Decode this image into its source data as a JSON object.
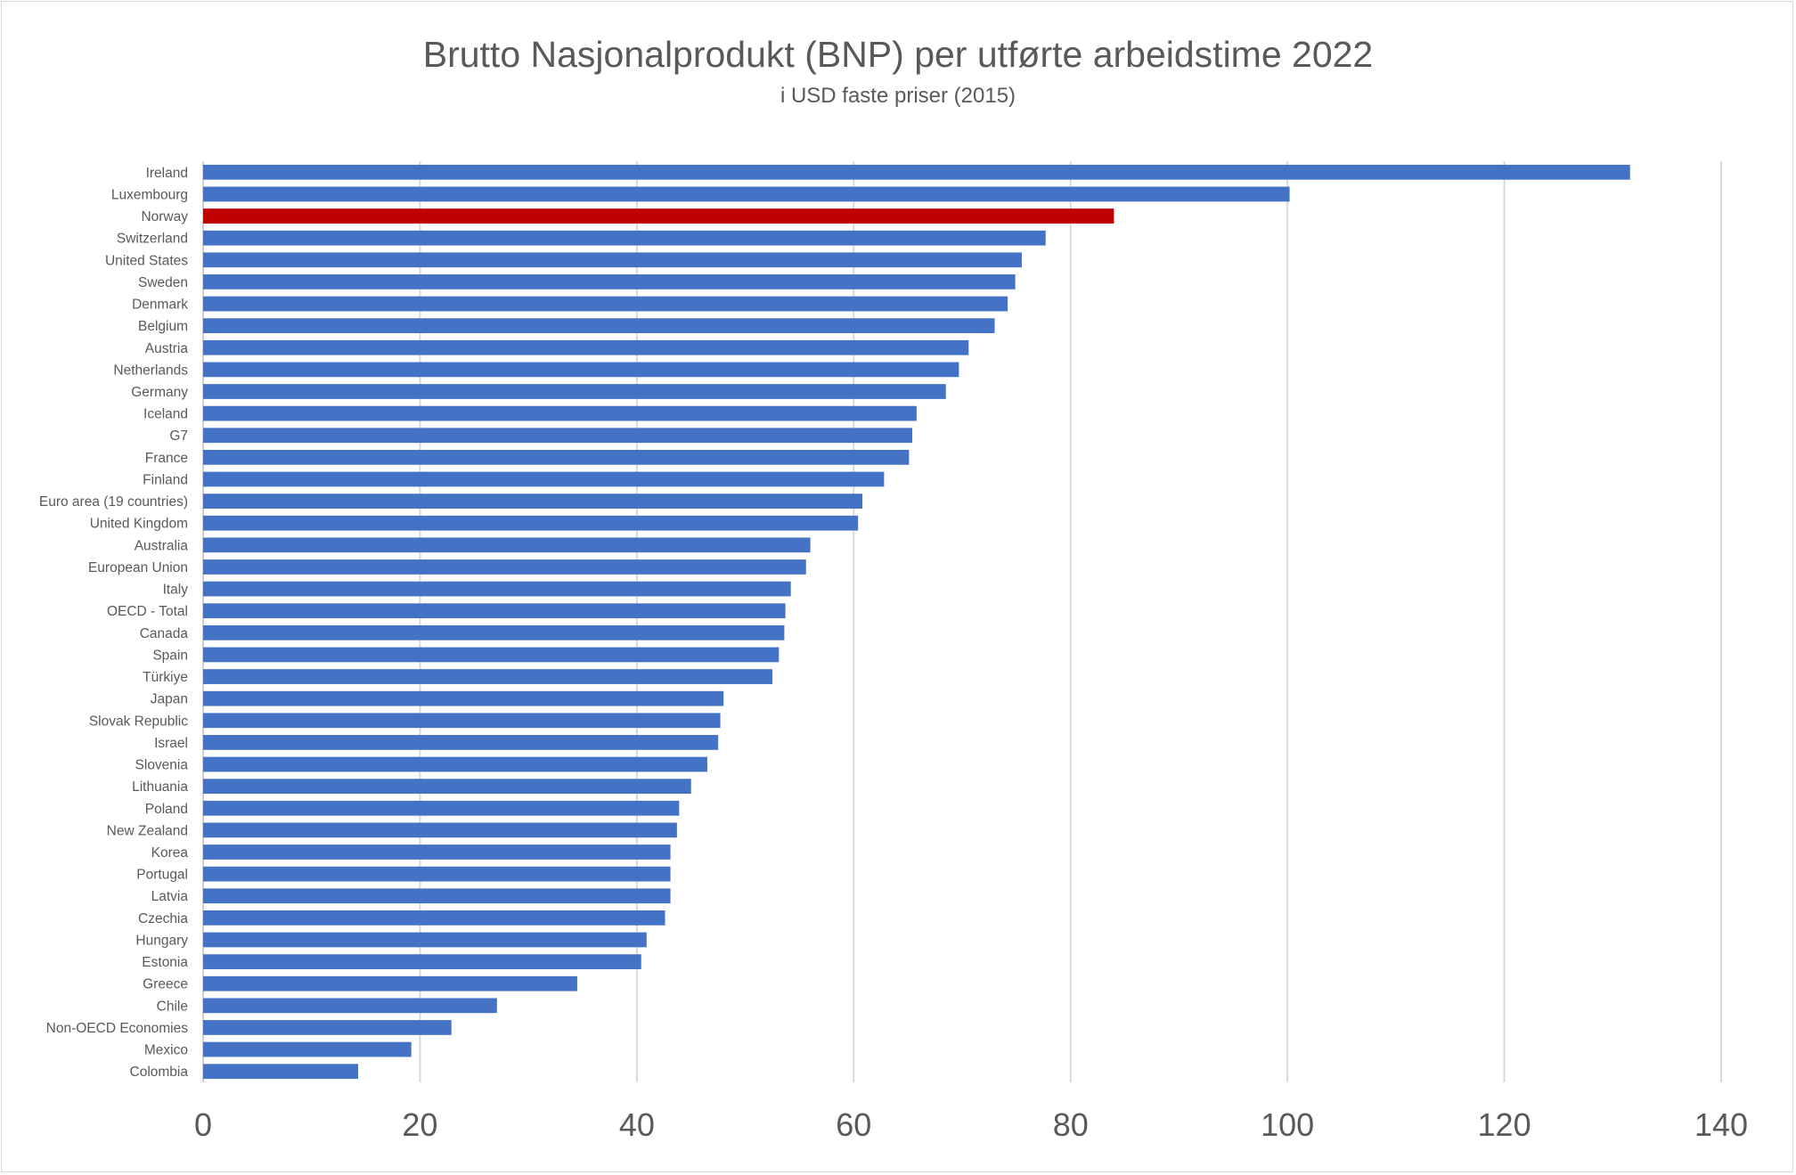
{
  "chart_data": {
    "type": "bar",
    "orientation": "horizontal",
    "title": "Brutto Nasjonalprodukt (BNP) per utførte arbeidstime 2022",
    "subtitle": "i USD faste priser (2015)",
    "xlabel": "",
    "ylabel": "",
    "xlim": [
      0,
      140
    ],
    "xticks": [
      0,
      20,
      40,
      60,
      80,
      100,
      120,
      140
    ],
    "grid": "vertical",
    "legend": "none",
    "colors": {
      "default": "#4472C4",
      "highlight": "#C00000"
    },
    "highlight": "Norway",
    "categories": [
      "Ireland",
      "Luxembourg",
      "Norway",
      "Switzerland",
      "United States",
      "Sweden",
      "Denmark",
      "Belgium",
      "Austria",
      "Netherlands",
      "Germany",
      "Iceland",
      "G7",
      "France",
      "Finland",
      "Euro area (19 countries)",
      "United Kingdom",
      "Australia",
      "European Union",
      "Italy",
      "OECD - Total",
      "Canada",
      "Spain",
      "Türkiye",
      "Japan",
      "Slovak Republic",
      "Israel",
      "Slovenia",
      "Lithuania",
      "Poland",
      "New Zealand",
      "Korea",
      "Portugal",
      "Latvia",
      "Czechia",
      "Hungary",
      "Estonia",
      "Greece",
      "Chile",
      "Non-OECD Economies",
      "Mexico",
      "Colombia"
    ],
    "values": [
      131.6,
      100.2,
      84.0,
      77.7,
      75.5,
      74.9,
      74.2,
      73.0,
      70.6,
      69.7,
      68.5,
      65.8,
      65.4,
      65.1,
      62.8,
      60.8,
      60.4,
      56.0,
      55.6,
      54.2,
      53.7,
      53.6,
      53.1,
      52.5,
      48.0,
      47.7,
      47.5,
      46.5,
      45.0,
      43.9,
      43.7,
      43.1,
      43.1,
      43.1,
      42.6,
      40.9,
      40.4,
      34.5,
      27.1,
      22.9,
      19.2,
      14.3
    ]
  }
}
